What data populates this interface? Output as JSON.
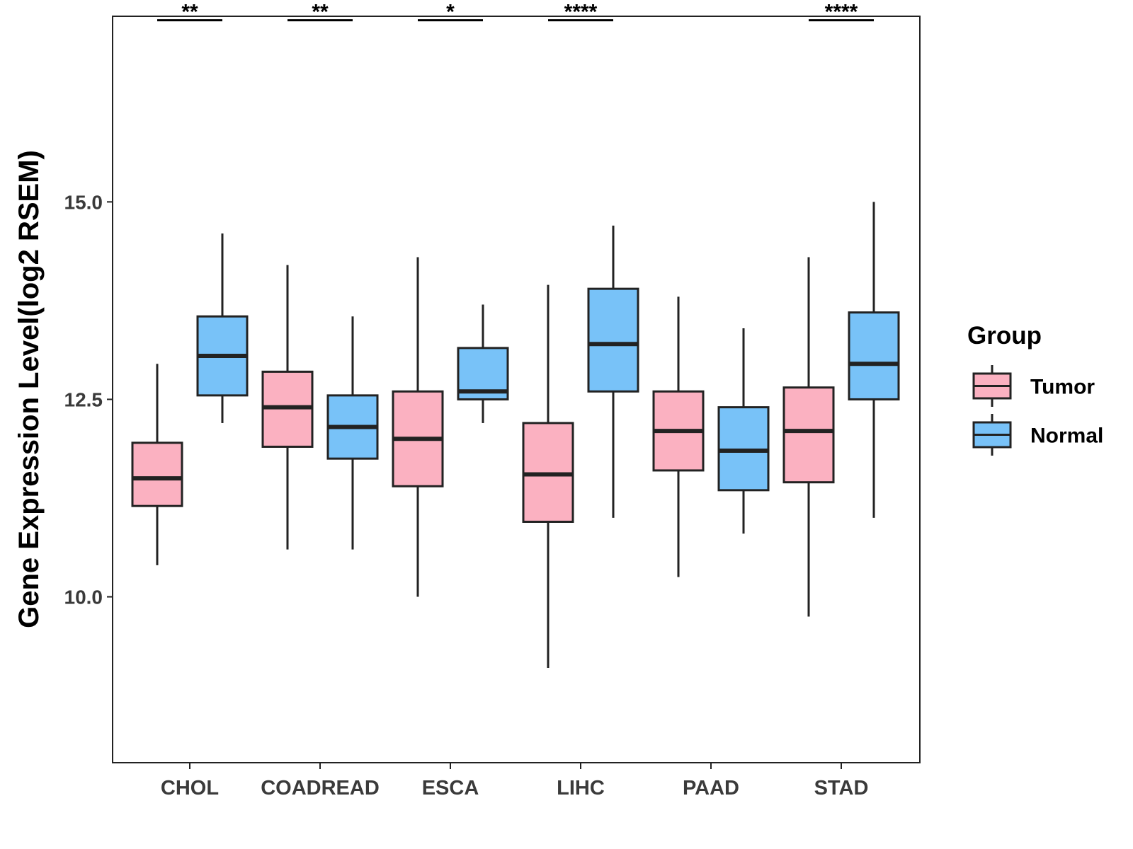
{
  "chart_data": {
    "type": "box",
    "ylabel": "Gene Expression Level(log2 RSEM)",
    "xlabel": "",
    "ylim": [
      7.9,
      17.35
    ],
    "yticks": [
      10.0,
      12.5,
      15.0
    ],
    "ytick_labels": [
      "10.0",
      "12.5",
      "15.0"
    ],
    "grid": false,
    "categories": [
      "CHOL",
      "COADREAD",
      "ESCA",
      "LIHC",
      "PAAD",
      "STAD"
    ],
    "series": [
      {
        "name": "Tumor",
        "color": "#FBB1C1",
        "boxes": [
          {
            "min": 10.4,
            "q1": 11.15,
            "median": 11.5,
            "q3": 11.95,
            "max": 12.95
          },
          {
            "min": 10.6,
            "q1": 11.9,
            "median": 12.4,
            "q3": 12.85,
            "max": 14.2
          },
          {
            "min": 10.0,
            "q1": 11.4,
            "median": 12.0,
            "q3": 12.6,
            "max": 14.3
          },
          {
            "min": 9.1,
            "q1": 10.95,
            "median": 11.55,
            "q3": 12.2,
            "max": 13.95
          },
          {
            "min": 10.25,
            "q1": 11.6,
            "median": 12.1,
            "q3": 12.6,
            "max": 13.8
          },
          {
            "min": 9.75,
            "q1": 11.45,
            "median": 12.1,
            "q3": 12.65,
            "max": 14.3
          }
        ]
      },
      {
        "name": "Normal",
        "color": "#78C2F8",
        "boxes": [
          {
            "min": 12.2,
            "q1": 12.55,
            "median": 13.05,
            "q3": 13.55,
            "max": 14.6
          },
          {
            "min": 10.6,
            "q1": 11.75,
            "median": 12.15,
            "q3": 12.55,
            "max": 13.55
          },
          {
            "min": 12.2,
            "q1": 12.5,
            "median": 12.6,
            "q3": 13.15,
            "max": 13.7
          },
          {
            "min": 11.0,
            "q1": 12.6,
            "median": 13.2,
            "q3": 13.9,
            "max": 14.7
          },
          {
            "min": 10.8,
            "q1": 11.35,
            "median": 11.85,
            "q3": 12.4,
            "max": 13.4
          },
          {
            "min": 11.0,
            "q1": 12.5,
            "median": 12.95,
            "q3": 13.6,
            "max": 15.0
          }
        ]
      }
    ],
    "significance": [
      {
        "category": "CHOL",
        "label": "**"
      },
      {
        "category": "COADREAD",
        "label": "**"
      },
      {
        "category": "ESCA",
        "label": "*"
      },
      {
        "category": "LIHC",
        "label": "****"
      },
      {
        "category": "PAAD",
        "label": ""
      },
      {
        "category": "STAD",
        "label": "****"
      }
    ],
    "significance_y": 17.3,
    "legend": {
      "title": "Group",
      "position": "right",
      "entries": [
        "Tumor",
        "Normal"
      ]
    }
  }
}
